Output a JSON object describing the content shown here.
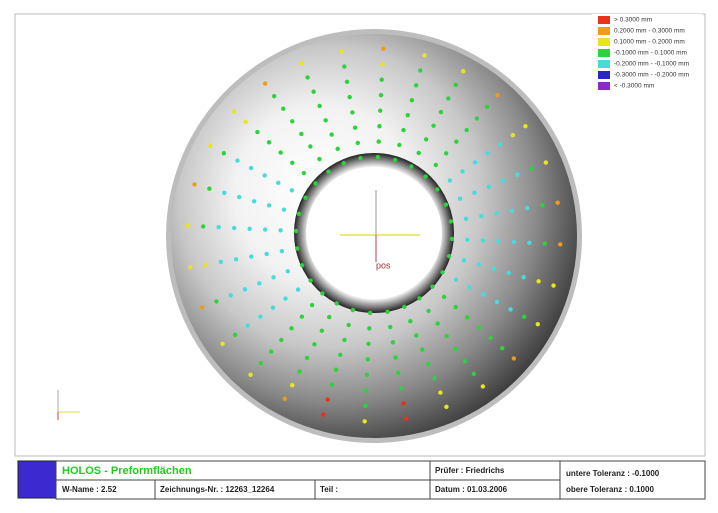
{
  "legend": {
    "entries": [
      {
        "label": "> 0.3000 mm",
        "color": "#e8321e"
      },
      {
        "label": "0.2000 mm - 0.3000 mm",
        "color": "#f29a1a"
      },
      {
        "label": "0.1000 mm - 0.2000 mm",
        "color": "#e6e61e"
      },
      {
        "label": "-0.1000 mm - 0.1000 mm",
        "color": "#2ed23c"
      },
      {
        "label": "-0.2000 mm - -0.1000 mm",
        "color": "#46dcdc"
      },
      {
        "label": "-0.3000 mm - -0.2000 mm",
        "color": "#2828c8"
      },
      {
        "label": "< -0.3000 mm",
        "color": "#8c28c8"
      }
    ]
  },
  "viewport": {
    "axis_label": "pos"
  },
  "footer": {
    "title": "HOLOS - Preformflächen",
    "w_name": "W-Name : 2.52",
    "drawing_no": "Zeichnungs-Nr. : 12263_12264",
    "part": "Teil :",
    "inspector": "Prüfer : Friedrichs",
    "date": "Datum : 01.03.2006",
    "lower_tolerance": "untere Toleranz : -0.1000",
    "upper_tolerance": "obere Toleranz : 0.1000"
  }
}
